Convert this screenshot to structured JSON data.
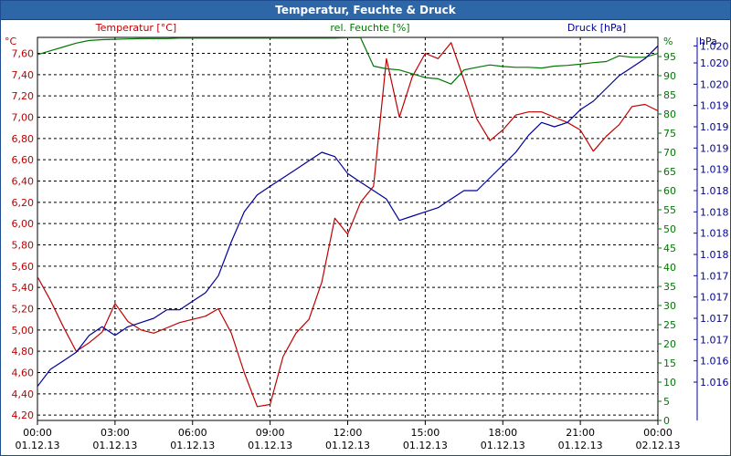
{
  "window": {
    "title": "Temperatur, Feuchte & Druck"
  },
  "colors": {
    "temperature": "#c00000",
    "humidity": "#007700",
    "pressure": "#000099",
    "grid": "#000000",
    "titlebar": "#2e67a8"
  },
  "chart_data": {
    "type": "line",
    "title": "Temperatur, Feuchte & Druck",
    "x": [
      "00:00",
      "00:30",
      "01:00",
      "01:30",
      "02:00",
      "02:30",
      "03:00",
      "03:30",
      "04:00",
      "04:30",
      "05:00",
      "05:30",
      "06:00",
      "06:30",
      "07:00",
      "07:30",
      "08:00",
      "08:30",
      "09:00",
      "09:30",
      "10:00",
      "10:30",
      "11:00",
      "11:30",
      "12:00",
      "12:30",
      "13:00",
      "13:30",
      "14:00",
      "14:30",
      "15:00",
      "15:30",
      "16:00",
      "16:30",
      "17:00",
      "17:30",
      "18:00",
      "18:30",
      "19:00",
      "19:30",
      "20:00",
      "20:30",
      "21:00",
      "21:30",
      "22:00",
      "22:30",
      "23:00",
      "23:30",
      "00:00"
    ],
    "x_axis": {
      "start": "01.12.13 00:00",
      "end": "02.12.13 00:00",
      "ticks": [
        {
          "time": "00:00",
          "date": "01.12.13"
        },
        {
          "time": "03:00",
          "date": "01.12.13"
        },
        {
          "time": "06:00",
          "date": "01.12.13"
        },
        {
          "time": "09:00",
          "date": "01.12.13"
        },
        {
          "time": "12:00",
          "date": "01.12.13"
        },
        {
          "time": "15:00",
          "date": "01.12.13"
        },
        {
          "time": "18:00",
          "date": "01.12.13"
        },
        {
          "time": "21:00",
          "date": "01.12.13"
        },
        {
          "time": "00:00",
          "date": "02.12.13"
        }
      ]
    },
    "axes": {
      "temperature": {
        "label": "Temperatur [°C]",
        "unit": "°C",
        "min": 4.15,
        "max": 7.75,
        "ticks": [
          "7,60",
          "7,40",
          "7,20",
          "7,00",
          "6,80",
          "6,60",
          "6,40",
          "6,20",
          "6,00",
          "5,80",
          "5,60",
          "5,40",
          "5,20",
          "5,00",
          "4,80",
          "4,60",
          "4,40",
          "4,20"
        ],
        "tick_values": [
          7.6,
          7.4,
          7.2,
          7.0,
          6.8,
          6.6,
          6.4,
          6.2,
          6.0,
          5.8,
          5.6,
          5.4,
          5.2,
          5.0,
          4.8,
          4.6,
          4.4,
          4.2
        ]
      },
      "humidity": {
        "label": "rel. Feuchte [%]",
        "unit": "%",
        "min": 0,
        "max": 100,
        "ticks": [
          "95",
          "90",
          "85",
          "80",
          "75",
          "70",
          "65",
          "60",
          "55",
          "50",
          "45",
          "40",
          "35",
          "30",
          "25",
          "20",
          "15",
          "10",
          "5",
          "0"
        ],
        "tick_values": [
          95,
          90,
          85,
          80,
          75,
          70,
          65,
          60,
          55,
          50,
          45,
          40,
          35,
          30,
          25,
          20,
          15,
          10,
          5,
          0
        ]
      },
      "pressure": {
        "label": "Druck [hPa]",
        "unit": "hPa",
        "min": 1015.8,
        "max": 1020.3,
        "ticks": [
          "1.020",
          "1.020",
          "1.020",
          "1.019",
          "1.019",
          "1.019",
          "1.019",
          "1.018",
          "1.018",
          "1.018",
          "1.018",
          "1.017",
          "1.017",
          "1.017",
          "1.017",
          "1.016",
          "1.016"
        ],
        "tick_values": [
          1020.2,
          1020.0,
          1019.75,
          1019.5,
          1019.25,
          1019.0,
          1018.75,
          1018.5,
          1018.25,
          1018.0,
          1017.75,
          1017.5,
          1017.25,
          1017.0,
          1016.75,
          1016.5,
          1016.25
        ]
      }
    },
    "grid": true,
    "series": [
      {
        "name": "Temperatur [°C]",
        "axis": "temperature",
        "color": "#c00000",
        "values": [
          5.5,
          5.28,
          5.03,
          4.8,
          4.88,
          4.98,
          5.25,
          5.08,
          5.0,
          4.97,
          5.02,
          5.07,
          5.1,
          5.13,
          5.2,
          4.97,
          4.6,
          4.28,
          4.3,
          4.75,
          4.97,
          5.1,
          5.45,
          6.05,
          5.9,
          6.2,
          6.35,
          7.55,
          7.0,
          7.38,
          7.6,
          7.55,
          7.7,
          7.35,
          6.98,
          6.78,
          6.88,
          7.02,
          7.05,
          7.05,
          7.0,
          6.95,
          6.88,
          6.68,
          6.82,
          6.93,
          7.1,
          7.12,
          7.06
        ]
      },
      {
        "name": "rel. Feuchte [%]",
        "axis": "humidity",
        "color": "#007700",
        "values": [
          95.5,
          96.5,
          97.5,
          98.5,
          99.2,
          99.4,
          99.5,
          99.6,
          99.7,
          99.7,
          99.7,
          99.8,
          99.8,
          99.8,
          99.8,
          99.8,
          99.8,
          99.8,
          99.8,
          99.8,
          99.8,
          99.8,
          99.8,
          99.8,
          99.9,
          99.9,
          92.5,
          91.8,
          91.5,
          90.5,
          89.5,
          89.2,
          87.8,
          91.5,
          92.2,
          92.8,
          92.4,
          92.2,
          92.2,
          92.0,
          92.5,
          92.7,
          93.0,
          93.4,
          93.7,
          95.2,
          94.8,
          94.8,
          95.8
        ]
      },
      {
        "name": "Druck [hPa]",
        "axis": "pressure",
        "color": "#000099",
        "values": [
          1016.2,
          1016.4,
          1016.5,
          1016.6,
          1016.8,
          1016.9,
          1016.8,
          1016.9,
          1016.95,
          1017.0,
          1017.1,
          1017.1,
          1017.2,
          1017.3,
          1017.5,
          1017.9,
          1018.25,
          1018.45,
          1018.55,
          1018.65,
          1018.75,
          1018.85,
          1018.95,
          1018.9,
          1018.7,
          1018.6,
          1018.5,
          1018.4,
          1018.15,
          1018.2,
          1018.25,
          1018.3,
          1018.4,
          1018.5,
          1018.5,
          1018.65,
          1018.8,
          1018.95,
          1019.15,
          1019.3,
          1019.25,
          1019.3,
          1019.45,
          1019.55,
          1019.7,
          1019.85,
          1019.95,
          1020.05,
          1020.2
        ]
      }
    ]
  }
}
